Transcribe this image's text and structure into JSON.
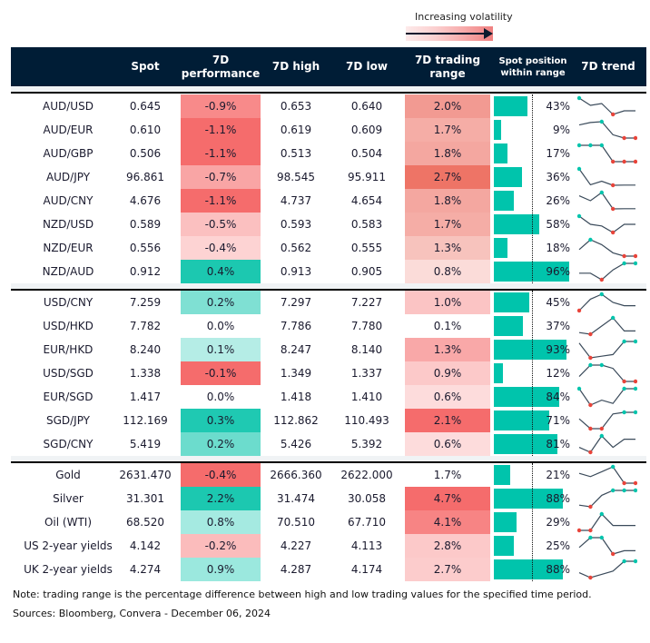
{
  "legend": {
    "label": "Increasing volatility",
    "icon": "arrow-right-icon"
  },
  "headers": {
    "spot": "Spot",
    "perf": "7D performance",
    "high": "7D high",
    "low": "7D low",
    "range": "7D trading range",
    "position": "Spot position within range",
    "trend": "7D trend"
  },
  "colors": {
    "header_bg": "#001d36",
    "bar": "#00c4ac",
    "trend_line": "#3a4a5a",
    "trend_max": "#00c4ac",
    "trend_min": "#e8443a"
  },
  "sections": [
    {
      "rows": [
        {
          "pair": "AUD/USD",
          "spot": "0.645",
          "perf": "-0.9%",
          "high": "0.653",
          "low": "0.640",
          "range": "2.0%",
          "pos": "43%",
          "pos_value": 43,
          "perf_color": "#f88a8a",
          "range_color": "#f29a92",
          "trend": [
            9,
            5,
            6,
            0,
            2,
            2
          ]
        },
        {
          "pair": "AUD/EUR",
          "spot": "0.610",
          "perf": "-1.1%",
          "high": "0.619",
          "low": "0.609",
          "range": "1.7%",
          "pos": "9%",
          "pos_value": 9,
          "perf_color": "#f56c6c",
          "range_color": "#f5ada6",
          "trend": [
            8,
            9.5,
            10,
            2,
            0,
            0
          ]
        },
        {
          "pair": "AUD/GBP",
          "spot": "0.506",
          "perf": "-1.1%",
          "high": "0.513",
          "low": "0.504",
          "range": "1.8%",
          "pos": "17%",
          "pos_value": 17,
          "perf_color": "#f56c6c",
          "range_color": "#f4a7a0",
          "trend": [
            10,
            10,
            10,
            0,
            0,
            0
          ]
        },
        {
          "pair": "AUD/JPY",
          "spot": "96.861",
          "perf": "-0.7%",
          "high": "98.545",
          "low": "95.911",
          "range": "2.7%",
          "pos": "36%",
          "pos_value": 36,
          "perf_color": "#f9a5a5",
          "range_color": "#ee7466",
          "trend": [
            10,
            0.3,
            2.5,
            0,
            0.1,
            0.1
          ]
        },
        {
          "pair": "AUD/CNY",
          "spot": "4.676",
          "perf": "-1.1%",
          "high": "4.737",
          "low": "4.654",
          "range": "1.8%",
          "pos": "26%",
          "pos_value": 26,
          "perf_color": "#f56c6c",
          "range_color": "#f4a7a0",
          "trend": [
            8,
            5,
            10,
            0,
            0.1,
            0.1
          ]
        },
        {
          "pair": "NZD/USD",
          "spot": "0.589",
          "perf": "-0.5%",
          "high": "0.593",
          "low": "0.583",
          "range": "1.7%",
          "pos": "58%",
          "pos_value": 58,
          "perf_color": "#fbc0c0",
          "range_color": "#f5ada6",
          "trend": [
            10,
            5,
            4,
            0,
            5,
            5
          ]
        },
        {
          "pair": "NZD/EUR",
          "spot": "0.556",
          "perf": "-0.4%",
          "high": "0.562",
          "low": "0.555",
          "range": "1.3%",
          "pos": "18%",
          "pos_value": 18,
          "perf_color": "#fdd3d3",
          "range_color": "#f7c3bd",
          "trend": [
            4,
            10,
            7,
            2,
            0,
            0
          ]
        },
        {
          "pair": "NZD/AUD",
          "spot": "0.912",
          "perf": "0.4%",
          "high": "0.913",
          "low": "0.905",
          "range": "0.8%",
          "pos": "96%",
          "pos_value": 96,
          "perf_color": "#1cc8b0",
          "range_color": "#fbdcd9",
          "trend": [
            4,
            4,
            0,
            6,
            10,
            10
          ]
        }
      ]
    },
    {
      "rows": [
        {
          "pair": "USD/CNY",
          "spot": "7.259",
          "perf": "0.2%",
          "high": "7.297",
          "low": "7.227",
          "range": "1.0%",
          "pos": "45%",
          "pos_value": 45,
          "perf_color": "#7fe0d3",
          "range_color": "#fbc4c4",
          "trend": [
            0,
            7,
            10,
            5,
            3,
            3
          ]
        },
        {
          "pair": "USD/HKD",
          "spot": "7.782",
          "perf": "0.0%",
          "high": "7.786",
          "low": "7.780",
          "range": "0.1%",
          "pos": "37%",
          "pos_value": 37,
          "perf_color": "#ffffff",
          "range_color": "#ffffff",
          "trend": [
            1,
            0,
            5,
            10,
            2,
            2
          ]
        },
        {
          "pair": "EUR/HKD",
          "spot": "8.240",
          "perf": "0.1%",
          "high": "8.247",
          "low": "8.140",
          "range": "1.3%",
          "pos": "93%",
          "pos_value": 93,
          "perf_color": "#b5ede6",
          "range_color": "#f9a8a8",
          "trend": [
            9,
            0,
            1,
            2,
            10,
            10
          ]
        },
        {
          "pair": "USD/SGD",
          "spot": "1.338",
          "perf": "-0.1%",
          "high": "1.349",
          "low": "1.337",
          "range": "0.9%",
          "pos": "12%",
          "pos_value": 12,
          "perf_color": "#f56c6c",
          "range_color": "#fcc9c9",
          "trend": [
            3,
            10,
            10,
            8,
            0,
            0
          ]
        },
        {
          "pair": "EUR/SGD",
          "spot": "1.417",
          "perf": "0.0%",
          "high": "1.418",
          "low": "1.410",
          "range": "0.6%",
          "pos": "84%",
          "pos_value": 84,
          "perf_color": "#ffffff",
          "range_color": "#fddcdc",
          "trend": [
            10,
            0,
            3,
            1,
            10,
            10
          ]
        },
        {
          "pair": "SGD/JPY",
          "spot": "112.169",
          "perf": "0.3%",
          "high": "112.862",
          "low": "110.493",
          "range": "2.1%",
          "pos": "71%",
          "pos_value": 71,
          "perf_color": "#1fc9b2",
          "range_color": "#f56c6c",
          "trend": [
            6,
            0,
            0,
            9,
            10,
            10
          ]
        },
        {
          "pair": "SGD/CNY",
          "spot": "5.419",
          "perf": "0.2%",
          "high": "5.426",
          "low": "5.392",
          "range": "0.6%",
          "pos": "81%",
          "pos_value": 81,
          "perf_color": "#6cdccd",
          "range_color": "#fddcdc",
          "trend": [
            3,
            0,
            10,
            3,
            8,
            8
          ]
        }
      ]
    },
    {
      "rows": [
        {
          "pair": "Gold",
          "spot": "2631.470",
          "perf": "-0.4%",
          "high": "2666.360",
          "low": "2622.000",
          "range": "1.7%",
          "pos": "21%",
          "pos_value": 21,
          "perf_color": "#f56c6c",
          "range_color": "#ffffff",
          "trend": [
            6,
            4,
            7,
            10,
            0,
            0
          ]
        },
        {
          "pair": "Silver",
          "spot": "31.301",
          "perf": "2.2%",
          "high": "31.474",
          "low": "30.058",
          "range": "4.7%",
          "pos": "88%",
          "pos_value": 88,
          "perf_color": "#1cc8b0",
          "range_color": "#f56c6c",
          "trend": [
            1,
            0,
            7,
            10,
            10,
            10
          ]
        },
        {
          "pair": "Oil (WTI)",
          "spot": "68.520",
          "perf": "0.8%",
          "high": "70.510",
          "low": "67.710",
          "range": "4.1%",
          "pos": "29%",
          "pos_value": 29,
          "perf_color": "#a5eae1",
          "range_color": "#f78484",
          "trend": [
            0,
            0,
            10,
            3,
            3,
            3
          ]
        },
        {
          "pair": "US 2-year yields",
          "spot": "4.142",
          "perf": "-0.2%",
          "high": "4.227",
          "low": "4.113",
          "range": "2.8%",
          "pos": "25%",
          "pos_value": 25,
          "perf_color": "#fbbcbc",
          "range_color": "#fcc9c9",
          "trend": [
            4,
            10,
            10,
            0,
            2,
            2
          ]
        },
        {
          "pair": "UK 2-year yields",
          "spot": "4.274",
          "perf": "0.9%",
          "high": "4.287",
          "low": "4.174",
          "range": "2.7%",
          "pos": "88%",
          "pos_value": 88,
          "perf_color": "#9be8de",
          "range_color": "#fccccc",
          "trend": [
            3,
            0,
            2,
            4,
            10,
            10
          ]
        }
      ]
    }
  ],
  "footer": {
    "note": "Note: trading range is the percentage difference between high and low trading values for the specified time period.",
    "sources": "Sources: Bloomberg, Convera - December 06, 2024"
  }
}
